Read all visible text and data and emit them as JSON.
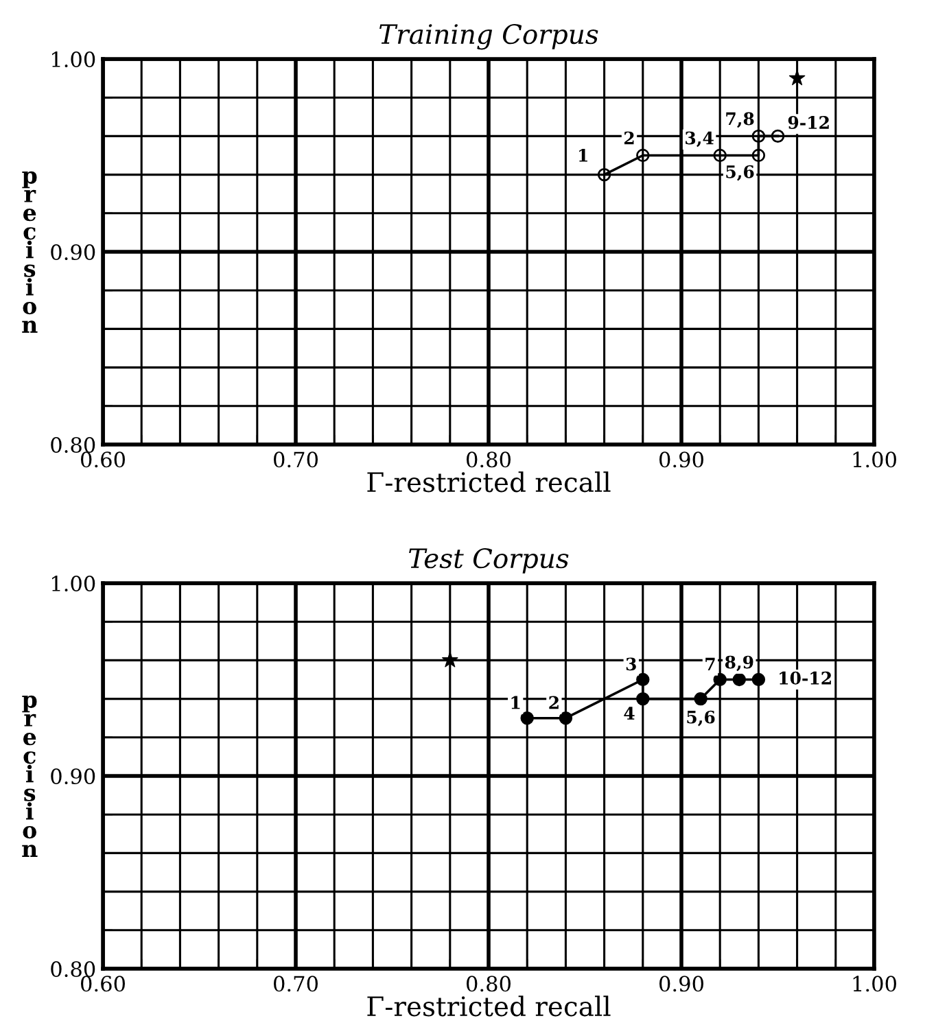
{
  "chart_data": [
    {
      "type": "line",
      "title": "Training Corpus",
      "xlabel": "Γ-restricted recall",
      "ylabel": "precision",
      "xlim": [
        0.6,
        1.0
      ],
      "ylim": [
        0.8,
        1.0
      ],
      "xticks": [
        {
          "value": 0.6,
          "label": "0.60"
        },
        {
          "value": 0.62,
          "label": null
        },
        {
          "value": 0.64,
          "label": null
        },
        {
          "value": 0.66,
          "label": null
        },
        {
          "value": 0.68,
          "label": null
        },
        {
          "value": 0.7,
          "label": "0.70"
        },
        {
          "value": 0.72,
          "label": null
        },
        {
          "value": 0.74,
          "label": null
        },
        {
          "value": 0.76,
          "label": null
        },
        {
          "value": 0.78,
          "label": null
        },
        {
          "value": 0.8,
          "label": "0.80"
        },
        {
          "value": 0.82,
          "label": null
        },
        {
          "value": 0.84,
          "label": null
        },
        {
          "value": 0.86,
          "label": null
        },
        {
          "value": 0.88,
          "label": null
        },
        {
          "value": 0.9,
          "label": "0.90"
        },
        {
          "value": 0.92,
          "label": null
        },
        {
          "value": 0.94,
          "label": null
        },
        {
          "value": 0.96,
          "label": null
        },
        {
          "value": 0.98,
          "label": null
        },
        {
          "value": 1.0,
          "label": "1.00"
        }
      ],
      "yticks": [
        {
          "value": 0.8,
          "label": "0.80"
        },
        {
          "value": 0.82,
          "label": null
        },
        {
          "value": 0.84,
          "label": null
        },
        {
          "value": 0.86,
          "label": null
        },
        {
          "value": 0.88,
          "label": null
        },
        {
          "value": 0.9,
          "label": "0.90"
        },
        {
          "value": 0.92,
          "label": null
        },
        {
          "value": 0.94,
          "label": null
        },
        {
          "value": 0.96,
          "label": null
        },
        {
          "value": 0.98,
          "label": null
        },
        {
          "value": 1.0,
          "label": "1.00"
        }
      ],
      "grid": true,
      "series": [
        {
          "color": "#000000",
          "marker": "circle",
          "x": [
            0.86,
            0.88,
            0.92,
            0.94,
            0.94,
            0.95
          ],
          "values": [
            0.94,
            0.95,
            0.95,
            0.95,
            0.96,
            0.96
          ]
        },
        {
          "type": "scatter",
          "color": "#000000",
          "marker": "star",
          "x": [
            0.96
          ],
          "values": [
            0.99
          ]
        }
      ],
      "annotations": [
        {
          "text": "1",
          "x": 0.86,
          "y": 0.94
        },
        {
          "text": "2",
          "x": 0.88,
          "y": 0.95
        },
        {
          "text": "3,4",
          "x": 0.92,
          "y": 0.95
        },
        {
          "text": "5,6",
          "x": 0.94,
          "y": 0.95
        },
        {
          "text": "7,8",
          "x": 0.94,
          "y": 0.96
        },
        {
          "text": "9-12",
          "x": 0.95,
          "y": 0.96
        }
      ]
    },
    {
      "type": "line",
      "title": "Test Corpus",
      "xlabel": "Γ-restricted recall",
      "ylabel": "precision",
      "xlim": [
        0.6,
        1.0
      ],
      "ylim": [
        0.8,
        1.0
      ],
      "xticks": [
        {
          "value": 0.6,
          "label": "0.60"
        },
        {
          "value": 0.62,
          "label": null
        },
        {
          "value": 0.64,
          "label": null
        },
        {
          "value": 0.66,
          "label": null
        },
        {
          "value": 0.68,
          "label": null
        },
        {
          "value": 0.7,
          "label": "0.70"
        },
        {
          "value": 0.72,
          "label": null
        },
        {
          "value": 0.74,
          "label": null
        },
        {
          "value": 0.76,
          "label": null
        },
        {
          "value": 0.78,
          "label": null
        },
        {
          "value": 0.8,
          "label": "0.80"
        },
        {
          "value": 0.82,
          "label": null
        },
        {
          "value": 0.84,
          "label": null
        },
        {
          "value": 0.86,
          "label": null
        },
        {
          "value": 0.88,
          "label": null
        },
        {
          "value": 0.9,
          "label": "0.90"
        },
        {
          "value": 0.92,
          "label": null
        },
        {
          "value": 0.94,
          "label": null
        },
        {
          "value": 0.96,
          "label": null
        },
        {
          "value": 0.98,
          "label": null
        },
        {
          "value": 1.0,
          "label": "1.00"
        }
      ],
      "yticks": [
        {
          "value": 0.8,
          "label": "0.80"
        },
        {
          "value": 0.82,
          "label": null
        },
        {
          "value": 0.84,
          "label": null
        },
        {
          "value": 0.86,
          "label": null
        },
        {
          "value": 0.88,
          "label": null
        },
        {
          "value": 0.9,
          "label": "0.90"
        },
        {
          "value": 0.92,
          "label": null
        },
        {
          "value": 0.94,
          "label": null
        },
        {
          "value": 0.96,
          "label": null
        },
        {
          "value": 0.98,
          "label": null
        },
        {
          "value": 1.0,
          "label": "1.00"
        }
      ],
      "grid": true,
      "series": [
        {
          "color": "#000000",
          "marker": "circle",
          "x": [
            0.82,
            0.84,
            0.88,
            0.88,
            0.91,
            0.92,
            0.93,
            0.94
          ],
          "values": [
            0.93,
            0.93,
            0.95,
            0.94,
            0.94,
            0.95,
            0.95,
            0.95
          ]
        },
        {
          "type": "scatter",
          "color": "#000000",
          "marker": "star",
          "x": [
            0.78
          ],
          "values": [
            0.96
          ]
        }
      ],
      "annotations": [
        {
          "text": "1",
          "x": 0.82,
          "y": 0.93
        },
        {
          "text": "2",
          "x": 0.84,
          "y": 0.93
        },
        {
          "text": "3",
          "x": 0.88,
          "y": 0.95
        },
        {
          "text": "4",
          "x": 0.88,
          "y": 0.94
        },
        {
          "text": "5,6",
          "x": 0.91,
          "y": 0.94
        },
        {
          "text": "7",
          "x": 0.92,
          "y": 0.95
        },
        {
          "text": "8,9",
          "x": 0.93,
          "y": 0.95
        },
        {
          "text": "10-12",
          "x": 0.94,
          "y": 0.95
        }
      ]
    }
  ]
}
